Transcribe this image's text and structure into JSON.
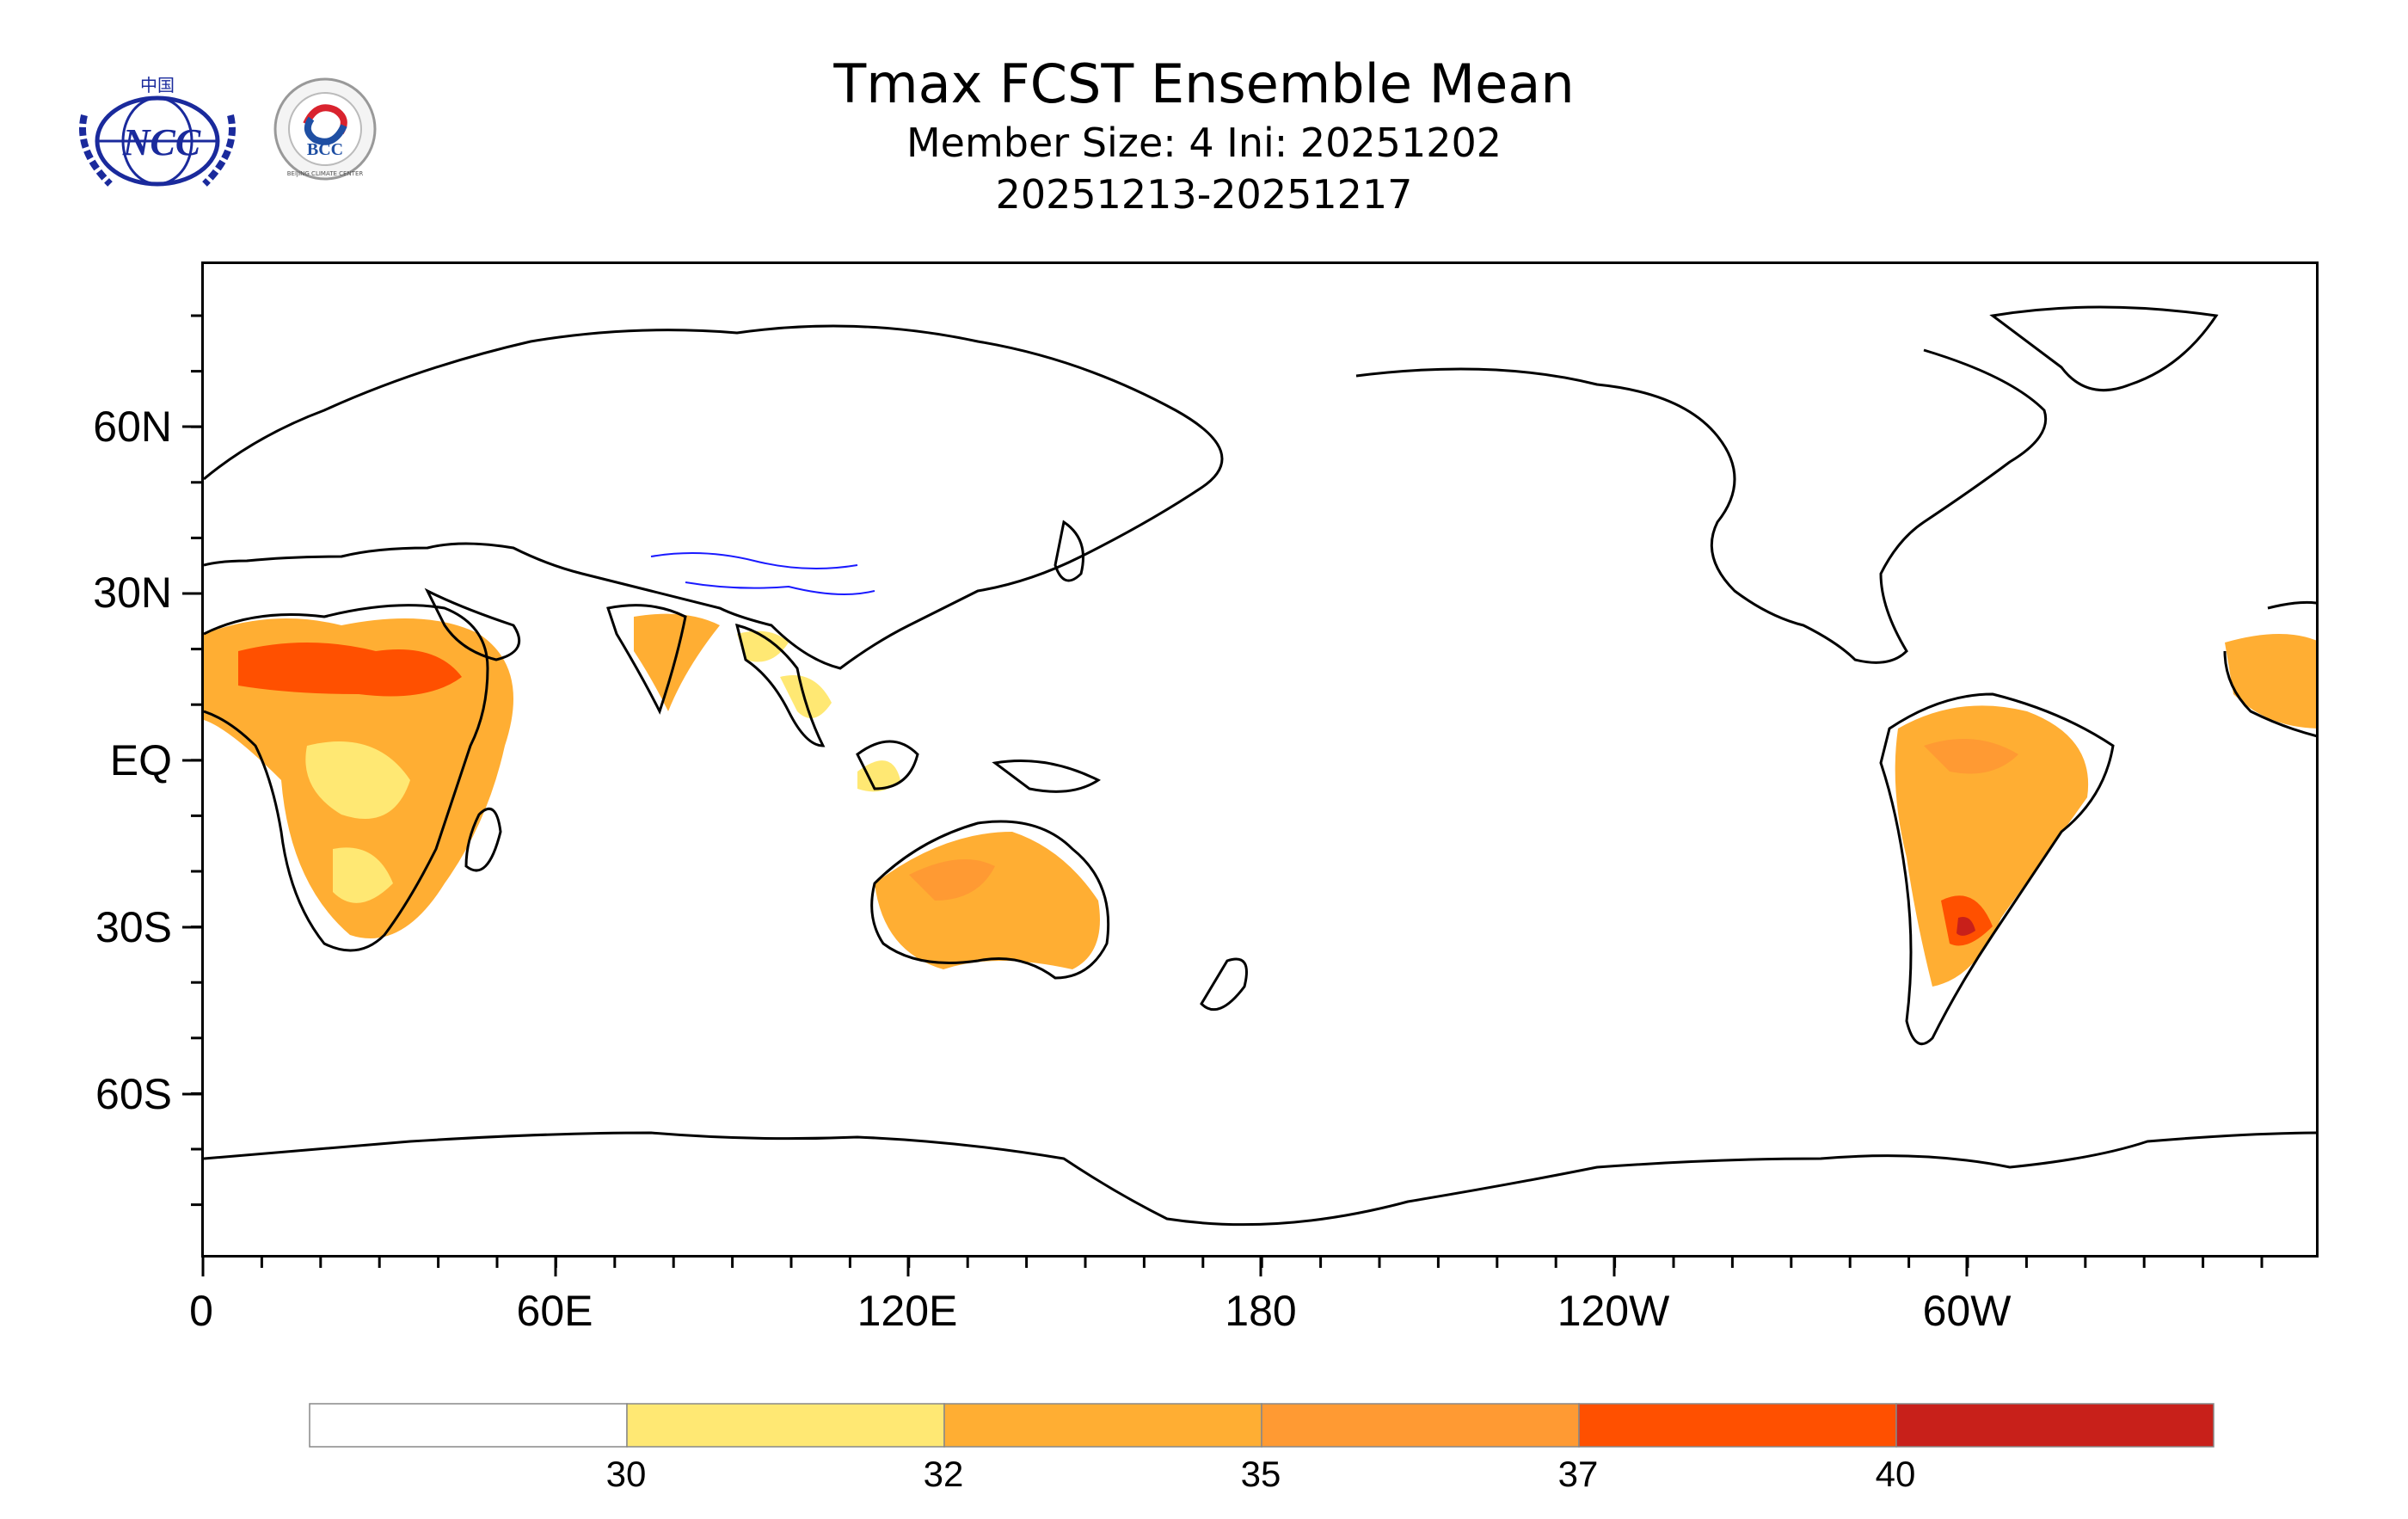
{
  "header": {
    "title": "Tmax FCST Ensemble Mean",
    "member_line": "Member Size: 4  Ini: 20251202",
    "period": "20251213-20251217"
  },
  "logos": {
    "ncc_text": "NCC",
    "ncc_top_text": "中国",
    "bcc_text": "BCC",
    "bcc_ring_text": "BEIJING CLIMATE CENTER"
  },
  "map": {
    "lat_labels": [
      "60N",
      "30N",
      "EQ",
      "30S",
      "60S"
    ],
    "lon_labels": [
      "0",
      "60E",
      "120E",
      "180",
      "120W",
      "60W"
    ],
    "colors": {
      "land_outline": "#000000",
      "river": "#1a1aff",
      "lev30": "#ffe873",
      "lev32": "#ffae33",
      "lev35": "#ff9a33",
      "lev37": "#ff5000",
      "lev40": "#c8201a"
    }
  },
  "colorbar": {
    "labels": [
      "30",
      "32",
      "35",
      "37",
      "40"
    ],
    "bins": [
      {
        "color": "#ffffff"
      },
      {
        "color": "#ffe873"
      },
      {
        "color": "#ffae33"
      },
      {
        "color": "#ff9a33"
      },
      {
        "color": "#ff5000"
      },
      {
        "color": "#c8201a"
      }
    ]
  }
}
